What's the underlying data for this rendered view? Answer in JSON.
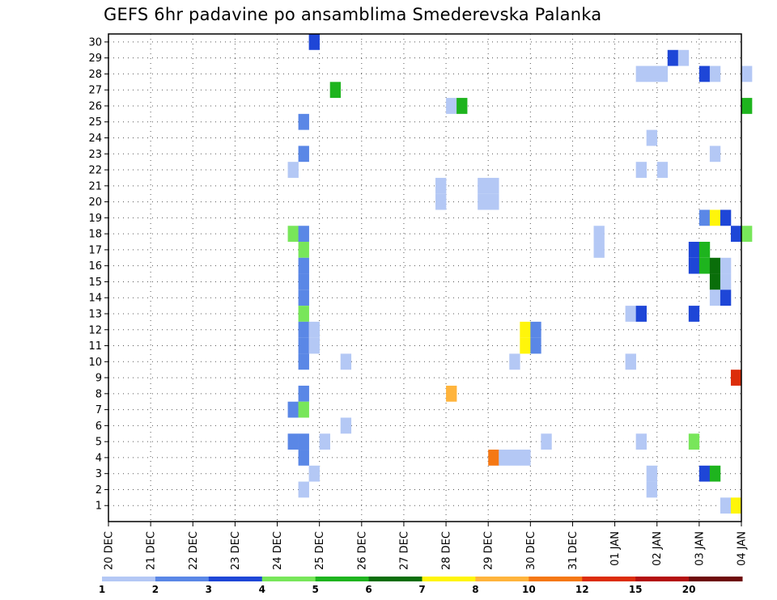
{
  "chart_data": {
    "type": "heatmap",
    "title": "GEFS 6hr padavine po ansamblima Smederevska Palanka",
    "x_ticks": [
      "20 DEC",
      "21 DEC",
      "22 DEC",
      "23 DEC",
      "24 DEC",
      "25 DEC",
      "26 DEC",
      "27 DEC",
      "28 DEC",
      "29 DEC",
      "30 DEC",
      "31 DEC",
      "01 JAN",
      "02 JAN",
      "03 JAN",
      "04 JAN"
    ],
    "y_ticks": [
      1,
      2,
      3,
      4,
      5,
      6,
      7,
      8,
      9,
      10,
      11,
      12,
      13,
      14,
      15,
      16,
      17,
      18,
      19,
      20,
      21,
      22,
      23,
      24,
      25,
      26,
      27,
      28,
      29,
      30
    ],
    "grid": true,
    "colorbar": {
      "labels": [
        "1",
        "2",
        "3",
        "4",
        "5",
        "6",
        "7",
        "8",
        "10",
        "12",
        "15",
        "20"
      ],
      "colors": [
        "#b4c8f5",
        "#5a87e6",
        "#1e46d7",
        "#78e65a",
        "#1eb41e",
        "#0a6e0a",
        "#fff50a",
        "#ffb43c",
        "#f57814",
        "#dc2d0a",
        "#b40f0f",
        "#6e0a0a"
      ]
    },
    "cells": [
      {
        "m": 30,
        "d": 4.75,
        "v": 3
      },
      {
        "m": 29,
        "d": 13.25,
        "v": 3
      },
      {
        "m": 29,
        "d": 13.5,
        "v": 1
      },
      {
        "m": 28,
        "d": 12.5,
        "v": 1
      },
      {
        "m": 28,
        "d": 12.75,
        "v": 1
      },
      {
        "m": 28,
        "d": 13.0,
        "v": 1
      },
      {
        "m": 28,
        "d": 14.0,
        "v": 3
      },
      {
        "m": 28,
        "d": 14.25,
        "v": 1
      },
      {
        "m": 28,
        "d": 15.0,
        "v": 1
      },
      {
        "m": 27,
        "d": 5.25,
        "v": 5
      },
      {
        "m": 26,
        "d": 8.0,
        "v": 1
      },
      {
        "m": 26,
        "d": 8.25,
        "v": 5
      },
      {
        "m": 26,
        "d": 15.0,
        "v": 5
      },
      {
        "m": 25,
        "d": 4.5,
        "v": 2
      },
      {
        "m": 24,
        "d": 12.75,
        "v": 1
      },
      {
        "m": 23,
        "d": 4.5,
        "v": 2
      },
      {
        "m": 23,
        "d": 14.25,
        "v": 1
      },
      {
        "m": 22,
        "d": 4.25,
        "v": 1
      },
      {
        "m": 22,
        "d": 12.5,
        "v": 1
      },
      {
        "m": 22,
        "d": 13.0,
        "v": 1
      },
      {
        "m": 21,
        "d": 7.75,
        "v": 1
      },
      {
        "m": 21,
        "d": 8.75,
        "v": 1
      },
      {
        "m": 21,
        "d": 9.0,
        "v": 1
      },
      {
        "m": 20,
        "d": 7.75,
        "v": 1
      },
      {
        "m": 20,
        "d": 8.75,
        "v": 1
      },
      {
        "m": 20,
        "d": 9.0,
        "v": 1
      },
      {
        "m": 19,
        "d": 14.0,
        "v": 2
      },
      {
        "m": 19,
        "d": 14.25,
        "v": 7
      },
      {
        "m": 19,
        "d": 14.5,
        "v": 3
      },
      {
        "m": 18,
        "d": 4.25,
        "v": 4
      },
      {
        "m": 18,
        "d": 4.5,
        "v": 2
      },
      {
        "m": 18,
        "d": 11.5,
        "v": 1
      },
      {
        "m": 18,
        "d": 14.75,
        "v": 3
      },
      {
        "m": 18,
        "d": 15.0,
        "v": 4
      },
      {
        "m": 17,
        "d": 4.5,
        "v": 4
      },
      {
        "m": 17,
        "d": 11.5,
        "v": 1
      },
      {
        "m": 17,
        "d": 13.75,
        "v": 3
      },
      {
        "m": 17,
        "d": 14.0,
        "v": 5
      },
      {
        "m": 16,
        "d": 4.5,
        "v": 2
      },
      {
        "m": 16,
        "d": 13.75,
        "v": 3
      },
      {
        "m": 16,
        "d": 14.0,
        "v": 5
      },
      {
        "m": 16,
        "d": 14.25,
        "v": 6
      },
      {
        "m": 16,
        "d": 14.5,
        "v": 1
      },
      {
        "m": 15,
        "d": 4.5,
        "v": 2
      },
      {
        "m": 15,
        "d": 14.25,
        "v": 6
      },
      {
        "m": 15,
        "d": 14.5,
        "v": 1
      },
      {
        "m": 14,
        "d": 4.5,
        "v": 2
      },
      {
        "m": 14,
        "d": 14.25,
        "v": 1
      },
      {
        "m": 14,
        "d": 14.5,
        "v": 3
      },
      {
        "m": 13,
        "d": 4.5,
        "v": 4
      },
      {
        "m": 13,
        "d": 12.25,
        "v": 1
      },
      {
        "m": 13,
        "d": 12.5,
        "v": 3
      },
      {
        "m": 13,
        "d": 13.75,
        "v": 3
      },
      {
        "m": 12,
        "d": 4.5,
        "v": 2
      },
      {
        "m": 12,
        "d": 4.75,
        "v": 1
      },
      {
        "m": 12,
        "d": 9.75,
        "v": 7
      },
      {
        "m": 12,
        "d": 10.0,
        "v": 2
      },
      {
        "m": 11,
        "d": 4.5,
        "v": 2
      },
      {
        "m": 11,
        "d": 4.75,
        "v": 1
      },
      {
        "m": 11,
        "d": 9.75,
        "v": 7
      },
      {
        "m": 11,
        "d": 10.0,
        "v": 2
      },
      {
        "m": 10,
        "d": 4.5,
        "v": 2
      },
      {
        "m": 10,
        "d": 5.5,
        "v": 1
      },
      {
        "m": 10,
        "d": 9.5,
        "v": 1
      },
      {
        "m": 10,
        "d": 12.25,
        "v": 1
      },
      {
        "m": 9,
        "d": 14.75,
        "v": 10
      },
      {
        "m": 8,
        "d": 4.5,
        "v": 2
      },
      {
        "m": 8,
        "d": 8.0,
        "v": 8
      },
      {
        "m": 7,
        "d": 4.25,
        "v": 2
      },
      {
        "m": 7,
        "d": 4.5,
        "v": 4
      },
      {
        "m": 6,
        "d": 5.5,
        "v": 1
      },
      {
        "m": 5,
        "d": 4.25,
        "v": 2
      },
      {
        "m": 5,
        "d": 4.5,
        "v": 2
      },
      {
        "m": 5,
        "d": 5.0,
        "v": 1
      },
      {
        "m": 5,
        "d": 10.25,
        "v": 1
      },
      {
        "m": 5,
        "d": 12.5,
        "v": 1
      },
      {
        "m": 5,
        "d": 13.75,
        "v": 4
      },
      {
        "m": 4,
        "d": 4.5,
        "v": 2
      },
      {
        "m": 4,
        "d": 9.0,
        "v": 9
      },
      {
        "m": 4,
        "d": 9.25,
        "v": 1
      },
      {
        "m": 4,
        "d": 9.5,
        "v": 1
      },
      {
        "m": 4,
        "d": 9.75,
        "v": 1
      },
      {
        "m": 3,
        "d": 4.75,
        "v": 1
      },
      {
        "m": 3,
        "d": 12.75,
        "v": 1
      },
      {
        "m": 3,
        "d": 14.0,
        "v": 3
      },
      {
        "m": 3,
        "d": 14.25,
        "v": 5
      },
      {
        "m": 2,
        "d": 4.5,
        "v": 1
      },
      {
        "m": 2,
        "d": 12.75,
        "v": 1
      },
      {
        "m": 1,
        "d": 14.5,
        "v": 1
      },
      {
        "m": 1,
        "d": 14.75,
        "v": 7
      }
    ]
  }
}
